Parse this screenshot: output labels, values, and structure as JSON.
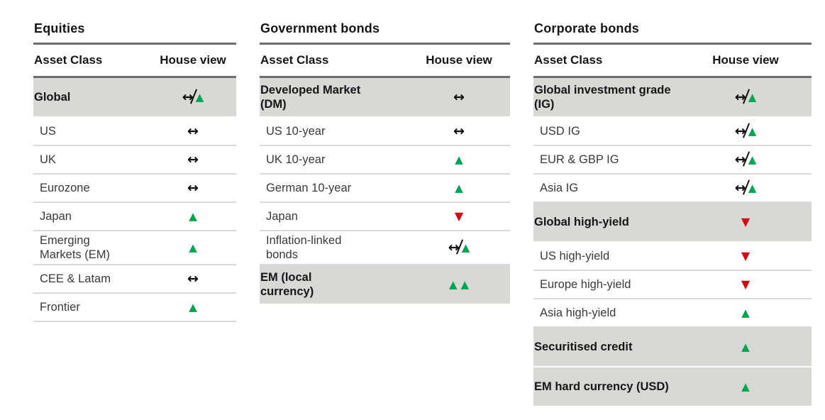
{
  "columns": {
    "asset_class": "Asset Class",
    "house_view": "House view"
  },
  "view_glyphs": {
    "neutral": "↔",
    "up": "▲",
    "down": "▼"
  },
  "colors": {
    "up_green": "#00a551",
    "down_red": "#d20a11",
    "neutral_black": "#111111",
    "highlight_gray": "#d8d8d5"
  },
  "tables": [
    {
      "title": "Equities",
      "rows": [
        {
          "label": "Global",
          "view": "neutral_to_up",
          "emphasis": true
        },
        {
          "label": "US",
          "view": "neutral",
          "emphasis": false
        },
        {
          "label": "UK",
          "view": "neutral",
          "emphasis": false
        },
        {
          "label": "Eurozone",
          "view": "neutral",
          "emphasis": false
        },
        {
          "label": "Japan",
          "view": "up",
          "emphasis": false
        },
        {
          "label": "Emerging Markets (EM)",
          "view": "up",
          "emphasis": false
        },
        {
          "label": "CEE & Latam",
          "view": "neutral",
          "emphasis": false
        },
        {
          "label": "Frontier",
          "view": "up",
          "emphasis": false
        }
      ]
    },
    {
      "title": "Government bonds",
      "rows": [
        {
          "label": "Developed Market (DM)",
          "view": "neutral",
          "emphasis": true
        },
        {
          "label": "US 10-year",
          "view": "neutral",
          "emphasis": false
        },
        {
          "label": "UK 10-year",
          "view": "up",
          "emphasis": false
        },
        {
          "label": "German 10-year",
          "view": "up",
          "emphasis": false
        },
        {
          "label": "Japan",
          "view": "down",
          "emphasis": false
        },
        {
          "label": "Inflation-linked bonds",
          "view": "neutral_to_up",
          "emphasis": false
        },
        {
          "label": "EM (local currency)",
          "view": "double_up",
          "emphasis": true
        }
      ]
    },
    {
      "title": "Corporate bonds",
      "rows": [
        {
          "label": "Global investment grade (IG)",
          "view": "neutral_to_up",
          "emphasis": true
        },
        {
          "label": "USD IG",
          "view": "neutral_to_up",
          "emphasis": false
        },
        {
          "label": "EUR & GBP IG",
          "view": "neutral_to_up",
          "emphasis": false
        },
        {
          "label": "Asia IG",
          "view": "neutral_to_up",
          "emphasis": false
        },
        {
          "label": "Global high-yield",
          "view": "down",
          "emphasis": true
        },
        {
          "label": "US high-yield",
          "view": "down",
          "emphasis": false
        },
        {
          "label": "Europe high-yield",
          "view": "down",
          "emphasis": false
        },
        {
          "label": "Asia high-yield",
          "view": "up",
          "emphasis": false
        },
        {
          "label": "Securitised credit",
          "view": "up",
          "emphasis": true
        },
        {
          "label": "EM hard currency (USD)",
          "view": "up",
          "emphasis": true
        }
      ]
    }
  ]
}
